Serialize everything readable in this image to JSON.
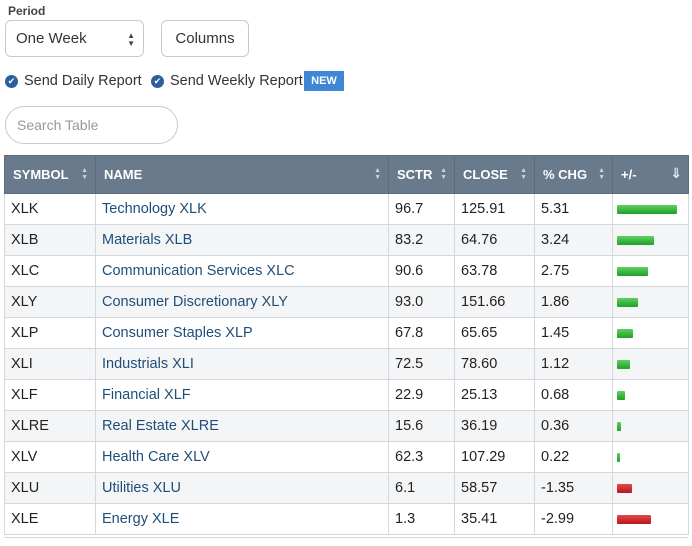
{
  "period": {
    "label": "Period",
    "selected": "One Week"
  },
  "columns_button": "Columns",
  "reports": {
    "daily": "Send Daily Report",
    "weekly": "Send Weekly Report",
    "new_badge": "NEW"
  },
  "search": {
    "placeholder": "Search Table"
  },
  "table": {
    "headers": [
      "SYMBOL",
      "NAME",
      "SCTR",
      "CLOSE",
      "% CHG",
      "+/-"
    ],
    "rows": [
      {
        "symbol": "XLK",
        "name": "Technology XLK",
        "sctr": "96.7",
        "close": "125.91",
        "pchg": "5.31",
        "change": 5.31
      },
      {
        "symbol": "XLB",
        "name": "Materials XLB",
        "sctr": "83.2",
        "close": "64.76",
        "pchg": "3.24",
        "change": 3.24
      },
      {
        "symbol": "XLC",
        "name": "Communication Services XLC",
        "sctr": "90.6",
        "close": "63.78",
        "pchg": "2.75",
        "change": 2.75
      },
      {
        "symbol": "XLY",
        "name": "Consumer Discretionary XLY",
        "sctr": "93.0",
        "close": "151.66",
        "pchg": "1.86",
        "change": 1.86
      },
      {
        "symbol": "XLP",
        "name": "Consumer Staples XLP",
        "sctr": "67.8",
        "close": "65.65",
        "pchg": "1.45",
        "change": 1.45
      },
      {
        "symbol": "XLI",
        "name": "Industrials XLI",
        "sctr": "72.5",
        "close": "78.60",
        "pchg": "1.12",
        "change": 1.12
      },
      {
        "symbol": "XLF",
        "name": "Financial XLF",
        "sctr": "22.9",
        "close": "25.13",
        "pchg": "0.68",
        "change": 0.68
      },
      {
        "symbol": "XLRE",
        "name": "Real Estate XLRE",
        "sctr": "15.6",
        "close": "36.19",
        "pchg": "0.36",
        "change": 0.36
      },
      {
        "symbol": "XLV",
        "name": "Health Care XLV",
        "sctr": "62.3",
        "close": "107.29",
        "pchg": "0.22",
        "change": 0.22
      },
      {
        "symbol": "XLU",
        "name": "Utilities XLU",
        "sctr": "6.1",
        "close": "58.57",
        "pchg": "-1.35",
        "change": -1.35
      },
      {
        "symbol": "XLE",
        "name": "Energy XLE",
        "sctr": "1.3",
        "close": "35.41",
        "pchg": "-2.99",
        "change": -2.99
      }
    ]
  },
  "colors": {
    "header_bg": "#687a8c",
    "positive": "#22a52a",
    "negative": "#c81e24",
    "link": "#1f4e79",
    "badge": "#3f86d4"
  },
  "icons": {
    "check": "check-circle-icon",
    "sort": "sort-arrows-icon",
    "sort_active": "sort-descending-icon",
    "select_caret": "up-down-caret-icon"
  }
}
